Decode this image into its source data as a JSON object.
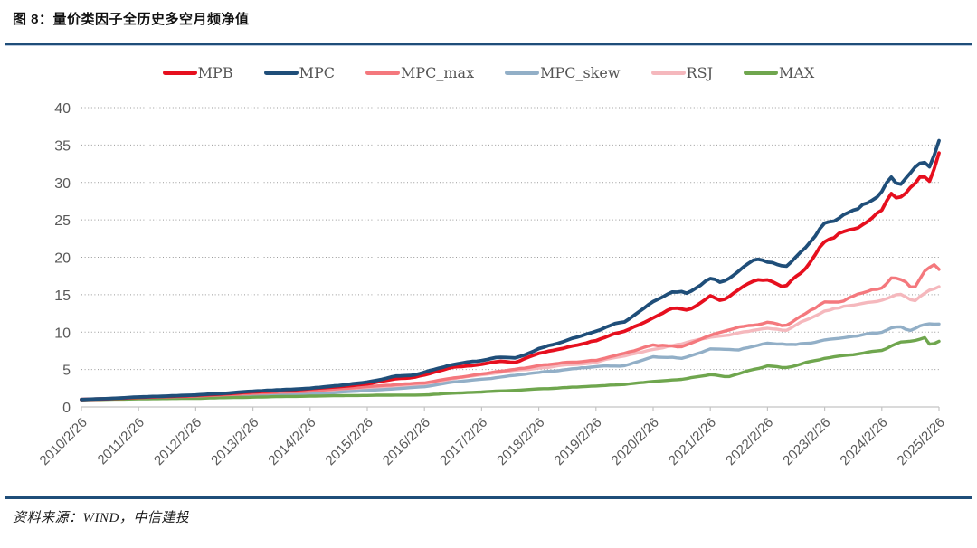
{
  "header": {
    "title": "图 8：量价类因子全历史多空月频净值"
  },
  "footer": {
    "source": "资料来源：WIND，中信建投"
  },
  "theme": {
    "rule_color": "#1f4e79",
    "axis_color": "#c4c4c4",
    "grid_color": "#9a9a9a",
    "label_color": "#595959"
  },
  "chart_data": {
    "type": "line",
    "title": "量价类因子全历史多空月频净值",
    "xlabel": "",
    "ylabel": "",
    "ylim": [
      0,
      40
    ],
    "y_ticks": [
      0,
      5,
      10,
      15,
      20,
      25,
      30,
      35,
      40
    ],
    "x_tick_labels": [
      "2010/2/26",
      "2011/2/26",
      "2012/2/26",
      "2013/2/26",
      "2014/2/26",
      "2015/2/26",
      "2016/2/26",
      "2017/2/26",
      "2018/2/26",
      "2019/2/26",
      "2020/2/26",
      "2021/2/26",
      "2022/2/26",
      "2023/2/26",
      "2024/2/26",
      "2025/2/26"
    ],
    "grid": "horizontal-dotted",
    "legend_position": "top-center",
    "frequency": "monthly",
    "series": [
      {
        "name": "MPB",
        "color": "#e60f1e",
        "anchors": [
          [
            2010,
            1.0
          ],
          [
            2010.5,
            1.1
          ],
          [
            2011,
            1.28
          ],
          [
            2011.5,
            1.4
          ],
          [
            2012,
            1.55
          ],
          [
            2012.5,
            1.75
          ],
          [
            2013,
            2.0
          ],
          [
            2013.5,
            2.2
          ],
          [
            2014,
            2.4
          ],
          [
            2014.5,
            2.7
          ],
          [
            2015,
            3.1
          ],
          [
            2015.5,
            3.8
          ],
          [
            2015.8,
            3.9
          ],
          [
            2016,
            4.3
          ],
          [
            2016.5,
            5.3
          ],
          [
            2017,
            5.7
          ],
          [
            2017.3,
            6.1
          ],
          [
            2017.6,
            6.0
          ],
          [
            2018,
            7.2
          ],
          [
            2018.5,
            8.0
          ],
          [
            2019,
            8.8
          ],
          [
            2019.3,
            9.8
          ],
          [
            2019.5,
            10.0
          ],
          [
            2020,
            12.0
          ],
          [
            2020.3,
            13.2
          ],
          [
            2020.6,
            13.0
          ],
          [
            2021,
            14.8
          ],
          [
            2021.2,
            14.1
          ],
          [
            2021.5,
            15.8
          ],
          [
            2021.8,
            17.2
          ],
          [
            2022,
            17.0
          ],
          [
            2022.3,
            16.1
          ],
          [
            2022.6,
            18.0
          ],
          [
            2023,
            22.0
          ],
          [
            2023.3,
            23.2
          ],
          [
            2023.6,
            24.2
          ],
          [
            2024,
            26.3
          ],
          [
            2024.15,
            28.8
          ],
          [
            2024.3,
            27.6
          ],
          [
            2024.5,
            29.3
          ],
          [
            2024.7,
            30.8
          ],
          [
            2024.85,
            29.7
          ],
          [
            2025,
            33.6
          ]
        ]
      },
      {
        "name": "MPC",
        "color": "#1f4e79",
        "anchors": [
          [
            2010,
            1.0
          ],
          [
            2010.5,
            1.12
          ],
          [
            2011,
            1.33
          ],
          [
            2011.5,
            1.45
          ],
          [
            2012,
            1.6
          ],
          [
            2012.5,
            1.82
          ],
          [
            2013,
            2.1
          ],
          [
            2013.5,
            2.3
          ],
          [
            2014,
            2.5
          ],
          [
            2014.5,
            2.85
          ],
          [
            2015,
            3.3
          ],
          [
            2015.5,
            4.1
          ],
          [
            2015.8,
            4.2
          ],
          [
            2016,
            4.6
          ],
          [
            2016.5,
            5.7
          ],
          [
            2017,
            6.2
          ],
          [
            2017.3,
            6.6
          ],
          [
            2017.6,
            6.5
          ],
          [
            2018,
            7.8
          ],
          [
            2018.5,
            8.9
          ],
          [
            2019,
            10.1
          ],
          [
            2019.3,
            11.0
          ],
          [
            2019.5,
            11.4
          ],
          [
            2020,
            14.1
          ],
          [
            2020.3,
            15.4
          ],
          [
            2020.6,
            15.1
          ],
          [
            2021,
            17.2
          ],
          [
            2021.2,
            16.5
          ],
          [
            2021.5,
            18.2
          ],
          [
            2021.8,
            19.9
          ],
          [
            2022,
            19.4
          ],
          [
            2022.3,
            18.7
          ],
          [
            2022.6,
            20.6
          ],
          [
            2023,
            24.5
          ],
          [
            2023.3,
            25.6
          ],
          [
            2023.6,
            26.6
          ],
          [
            2024,
            28.8
          ],
          [
            2024.15,
            30.6
          ],
          [
            2024.3,
            29.6
          ],
          [
            2024.5,
            31.4
          ],
          [
            2024.7,
            32.9
          ],
          [
            2024.85,
            32.1
          ],
          [
            2025,
            35.4
          ]
        ]
      },
      {
        "name": "MPC_max",
        "color": "#f4787d",
        "anchors": [
          [
            2010,
            1.0
          ],
          [
            2011,
            1.25
          ],
          [
            2012,
            1.45
          ],
          [
            2013,
            1.8
          ],
          [
            2014,
            2.1
          ],
          [
            2015,
            2.7
          ],
          [
            2015.5,
            3.0
          ],
          [
            2016,
            3.2
          ],
          [
            2016.5,
            3.9
          ],
          [
            2017,
            4.4
          ],
          [
            2018,
            5.5
          ],
          [
            2018.5,
            5.9
          ],
          [
            2019,
            6.2
          ],
          [
            2019.5,
            7.2
          ],
          [
            2020,
            8.3
          ],
          [
            2020.5,
            8.1
          ],
          [
            2021,
            9.5
          ],
          [
            2021.5,
            10.6
          ],
          [
            2022,
            11.3
          ],
          [
            2022.3,
            10.8
          ],
          [
            2022.6,
            12.1
          ],
          [
            2023,
            14.1
          ],
          [
            2023.3,
            13.9
          ],
          [
            2023.6,
            15.2
          ],
          [
            2024,
            15.8
          ],
          [
            2024.2,
            17.4
          ],
          [
            2024.4,
            16.9
          ],
          [
            2024.55,
            15.4
          ],
          [
            2024.75,
            18.1
          ],
          [
            2024.9,
            19.2
          ],
          [
            2025,
            18.4
          ]
        ]
      },
      {
        "name": "MPC_skew",
        "color": "#92afc7",
        "anchors": [
          [
            2010,
            1.0
          ],
          [
            2011,
            1.15
          ],
          [
            2012,
            1.3
          ],
          [
            2013,
            1.5
          ],
          [
            2014,
            1.7
          ],
          [
            2015,
            2.2
          ],
          [
            2016,
            2.7
          ],
          [
            2016.5,
            3.3
          ],
          [
            2017,
            3.7
          ],
          [
            2018,
            4.6
          ],
          [
            2019,
            5.4
          ],
          [
            2019.5,
            5.5
          ],
          [
            2020,
            6.7
          ],
          [
            2020.5,
            6.5
          ],
          [
            2021,
            7.7
          ],
          [
            2021.5,
            7.6
          ],
          [
            2022,
            8.5
          ],
          [
            2022.5,
            8.3
          ],
          [
            2023,
            8.9
          ],
          [
            2023.5,
            9.5
          ],
          [
            2024,
            10.0
          ],
          [
            2024.3,
            10.8
          ],
          [
            2024.5,
            10.2
          ],
          [
            2024.8,
            11.1
          ],
          [
            2025,
            11.0
          ]
        ]
      },
      {
        "name": "RSJ",
        "color": "#f5b8bd",
        "anchors": [
          [
            2010,
            1.0
          ],
          [
            2011,
            1.2
          ],
          [
            2012,
            1.4
          ],
          [
            2013,
            1.7
          ],
          [
            2014,
            2.0
          ],
          [
            2015,
            2.5
          ],
          [
            2016,
            3.0
          ],
          [
            2016.5,
            3.8
          ],
          [
            2017,
            4.3
          ],
          [
            2018,
            5.2
          ],
          [
            2019,
            6.0
          ],
          [
            2019.5,
            6.9
          ],
          [
            2020,
            7.7
          ],
          [
            2021,
            9.3
          ],
          [
            2021.5,
            9.9
          ],
          [
            2022,
            10.4
          ],
          [
            2022.3,
            10.1
          ],
          [
            2023,
            12.9
          ],
          [
            2023.5,
            13.6
          ],
          [
            2024,
            14.3
          ],
          [
            2024.3,
            15.1
          ],
          [
            2024.55,
            14.1
          ],
          [
            2024.8,
            15.6
          ],
          [
            2025,
            16.2
          ]
        ]
      },
      {
        "name": "MAX",
        "color": "#6fa64e",
        "anchors": [
          [
            2010,
            0.95
          ],
          [
            2011,
            1.08
          ],
          [
            2012,
            1.15
          ],
          [
            2013,
            1.3
          ],
          [
            2014,
            1.45
          ],
          [
            2015,
            1.55
          ],
          [
            2016,
            1.6
          ],
          [
            2016.5,
            1.85
          ],
          [
            2017,
            2.0
          ],
          [
            2018,
            2.4
          ],
          [
            2019,
            2.8
          ],
          [
            2019.5,
            3.0
          ],
          [
            2020,
            3.4
          ],
          [
            2020.5,
            3.7
          ],
          [
            2021,
            4.3
          ],
          [
            2021.3,
            4.0
          ],
          [
            2022,
            5.5
          ],
          [
            2022.3,
            5.2
          ],
          [
            2023,
            6.5
          ],
          [
            2023.5,
            7.0
          ],
          [
            2024,
            7.6
          ],
          [
            2024.3,
            8.6
          ],
          [
            2024.55,
            8.9
          ],
          [
            2024.75,
            9.3
          ],
          [
            2024.85,
            8.2
          ],
          [
            2025,
            8.8
          ]
        ]
      }
    ]
  }
}
